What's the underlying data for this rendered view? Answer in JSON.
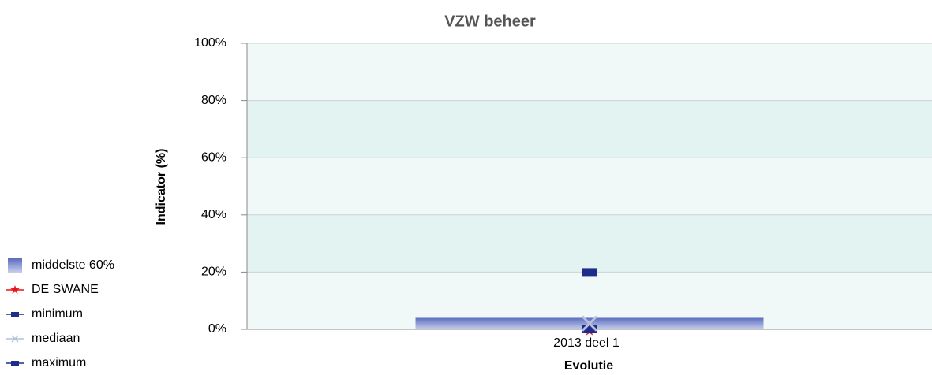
{
  "chart_data": {
    "type": "box",
    "title": "VZW beheer",
    "x_label": "Evolutie",
    "y_label": "Indicator (%)",
    "categories": [
      "2013 deel 1"
    ],
    "series": [
      {
        "name": "middelste 60%",
        "color": "#7f8fcc",
        "marker": "bar",
        "values": [
          4
        ]
      },
      {
        "name": "DE SWANE",
        "color": "#e8141b",
        "marker": "star",
        "values": [
          0
        ]
      },
      {
        "name": "minimum",
        "color": "#1f2d8a",
        "marker": "dash",
        "values": [
          0
        ]
      },
      {
        "name": "mediaan",
        "color": "#b7bfdc",
        "marker": "x",
        "values": [
          2
        ]
      },
      {
        "name": "maximum",
        "color": "#1f2d8a",
        "marker": "dash",
        "values": [
          20
        ]
      }
    ],
    "ylim": [
      0,
      100
    ],
    "yticks": [
      {
        "value": 0,
        "label": "0%"
      },
      {
        "value": 20,
        "label": "20%"
      },
      {
        "value": 40,
        "label": "40%"
      },
      {
        "value": 60,
        "label": "60%"
      },
      {
        "value": 80,
        "label": "80%"
      },
      {
        "value": 100,
        "label": "100%"
      }
    ],
    "grid": true,
    "bands": [
      "#f1f9f8",
      "#e3f3f1"
    ],
    "legend": "left"
  }
}
